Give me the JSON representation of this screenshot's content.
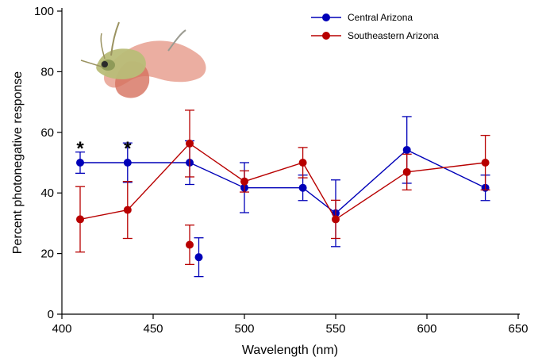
{
  "chart_data": {
    "type": "line",
    "xlabel": "Wavelength (nm)",
    "ylabel": "Percent photonegative response",
    "xlim": [
      400,
      650
    ],
    "ylim": [
      0,
      100
    ],
    "xticks": [
      400,
      450,
      500,
      550,
      600,
      650
    ],
    "yticks": [
      0,
      20,
      40,
      60,
      80,
      100
    ],
    "grid": false,
    "legend_position": "top-right",
    "series": [
      {
        "name": "Central Arizona",
        "color": "#0000b8",
        "points": [
          {
            "x": 410,
            "y": 50,
            "err_low": 46.5,
            "err_high": 53.5
          },
          {
            "x": 436,
            "y": 50,
            "err_low": 43.5,
            "err_high": 56.5
          },
          {
            "x": 470,
            "y": 50,
            "err_low": 42.8,
            "err_high": 57.2
          },
          {
            "x": 500,
            "y": 41.7,
            "err_low": 33.5,
            "err_high": 50
          },
          {
            "x": 532,
            "y": 41.7,
            "err_low": 37.5,
            "err_high": 45.9
          },
          {
            "x": 550,
            "y": 33.3,
            "err_low": 22.3,
            "err_high": 44.3
          },
          {
            "x": 589,
            "y": 54.2,
            "err_low": 43.2,
            "err_high": 65.2
          },
          {
            "x": 632,
            "y": 41.7,
            "err_low": 37.5,
            "err_high": 45.9
          }
        ],
        "isolated_point": {
          "x": 475,
          "y": 18.8,
          "err_low": 12.4,
          "err_high": 25.2
        }
      },
      {
        "name": "Southeastern Arizona",
        "color": "#b80000",
        "points": [
          {
            "x": 410,
            "y": 31.3,
            "err_low": 20.5,
            "err_high": 42.1
          },
          {
            "x": 436,
            "y": 34.4,
            "err_low": 25,
            "err_high": 43.8
          },
          {
            "x": 470,
            "y": 56.3,
            "err_low": 45.3,
            "err_high": 67.3
          },
          {
            "x": 500,
            "y": 43.8,
            "err_low": 40.3,
            "err_high": 47.3
          },
          {
            "x": 532,
            "y": 50,
            "err_low": 45,
            "err_high": 55
          },
          {
            "x": 550,
            "y": 31.3,
            "err_low": 25,
            "err_high": 37.6
          },
          {
            "x": 589,
            "y": 46.9,
            "err_low": 41,
            "err_high": 52.8
          },
          {
            "x": 632,
            "y": 50,
            "err_low": 41,
            "err_high": 59
          }
        ],
        "isolated_point": {
          "x": 470,
          "y": 22.9,
          "err_low": 16.4,
          "err_high": 29.4
        }
      }
    ],
    "annotations": [
      {
        "text": "*",
        "x": 410,
        "y": 50
      },
      {
        "text": "*",
        "x": 436,
        "y": 50
      }
    ]
  },
  "decoration": {
    "icon": "fairy-shrimp-icon"
  }
}
